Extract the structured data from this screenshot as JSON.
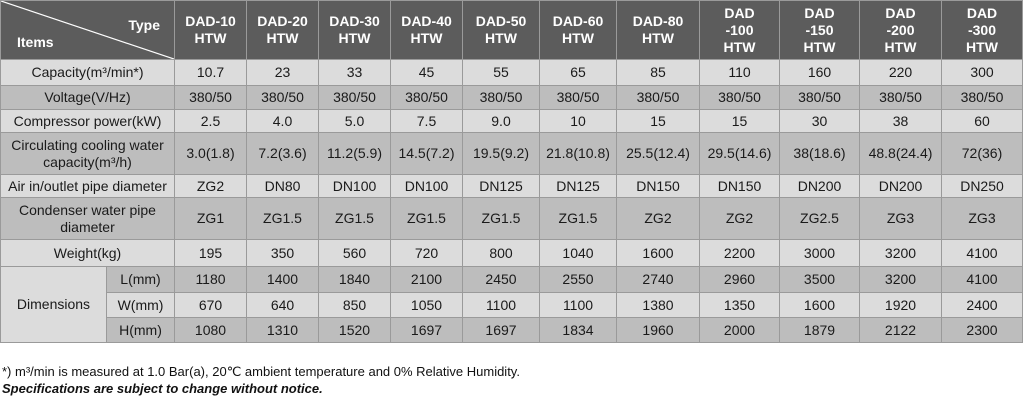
{
  "header": {
    "type_label": "Type",
    "items_label": "Items",
    "models": [
      [
        "DAD-10",
        "HTW"
      ],
      [
        "DAD-20",
        "HTW"
      ],
      [
        "DAD-30",
        "HTW"
      ],
      [
        "DAD-40",
        "HTW"
      ],
      [
        "DAD-50",
        "HTW"
      ],
      [
        "DAD-60",
        "HTW"
      ],
      [
        "DAD-80",
        "HTW"
      ],
      [
        "DAD",
        "-100",
        "HTW"
      ],
      [
        "DAD",
        "-150",
        "HTW"
      ],
      [
        "DAD",
        "-200",
        "HTW"
      ],
      [
        "DAD",
        "-300",
        "HTW"
      ]
    ]
  },
  "rows": [
    {
      "label": [
        "Capacity(m³/min*)"
      ],
      "values": [
        "10.7",
        "23",
        "33",
        "45",
        "55",
        "65",
        "85",
        "110",
        "160",
        "220",
        "300"
      ]
    },
    {
      "label": [
        "Voltage(V/Hz)"
      ],
      "values": [
        "380/50",
        "380/50",
        "380/50",
        "380/50",
        "380/50",
        "380/50",
        "380/50",
        "380/50",
        "380/50",
        "380/50",
        "380/50"
      ]
    },
    {
      "label": [
        "Compressor power(kW)"
      ],
      "values": [
        "2.5",
        "4.0",
        "5.0",
        "7.5",
        "9.0",
        "10",
        "15",
        "15",
        "30",
        "38",
        "60"
      ]
    },
    {
      "label": [
        "Circulating cooling water",
        "capacity(m³/h)"
      ],
      "values": [
        "3.0(1.8)",
        "7.2(3.6)",
        "11.2(5.9)",
        "14.5(7.2)",
        "19.5(9.2)",
        "21.8(10.8)",
        "25.5(12.4)",
        "29.5(14.6)",
        "38(18.6)",
        "48.8(24.4)",
        "72(36)"
      ]
    },
    {
      "label": [
        "Air in/outlet pipe diameter"
      ],
      "values": [
        "ZG2",
        "DN80",
        "DN100",
        "DN100",
        "DN125",
        "DN125",
        "DN150",
        "DN150",
        "DN200",
        "DN200",
        "DN250"
      ]
    },
    {
      "label": [
        "Condenser water pipe",
        "diameter"
      ],
      "values": [
        "ZG1",
        "ZG1.5",
        "ZG1.5",
        "ZG1.5",
        "ZG1.5",
        "ZG1.5",
        "ZG2",
        "ZG2",
        "ZG2.5",
        "ZG3",
        "ZG3"
      ]
    },
    {
      "label": [
        "Weight(kg)"
      ],
      "values": [
        "195",
        "350",
        "560",
        "720",
        "800",
        "1040",
        "1600",
        "2200",
        "3000",
        "3200",
        "4100"
      ]
    }
  ],
  "dimensions": {
    "label": "Dimensions",
    "rows": [
      {
        "label": "L(mm)",
        "values": [
          "1180",
          "1400",
          "1840",
          "2100",
          "2450",
          "2550",
          "2740",
          "2960",
          "3500",
          "3200",
          "4100"
        ]
      },
      {
        "label": "W(mm)",
        "values": [
          "670",
          "640",
          "850",
          "1050",
          "1100",
          "1100",
          "1380",
          "1350",
          "1600",
          "1920",
          "2400"
        ]
      },
      {
        "label": "H(mm)",
        "values": [
          "1080",
          "1310",
          "1520",
          "1697",
          "1697",
          "1834",
          "1960",
          "2000",
          "1879",
          "2122",
          "2300"
        ]
      }
    ]
  },
  "notes": {
    "footnote": "*) m³/min is measured at 1.0 Bar(a), 20℃ ambient temperature and 0% Relative Humidity.",
    "disclaimer": "Specifications are subject to change without notice."
  },
  "colors": {
    "header_bg": "#5c5c5c",
    "row_light": "#dcdcdc",
    "row_dark": "#bdbdbd"
  }
}
